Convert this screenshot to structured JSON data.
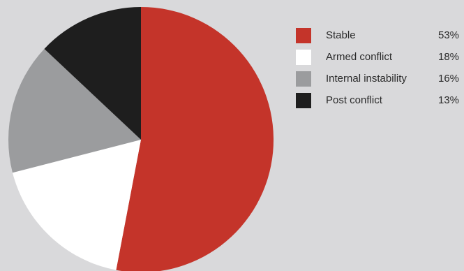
{
  "chart_data": {
    "type": "pie",
    "title": "",
    "legend_position": "right",
    "slices": [
      {
        "label": "Stable",
        "value": 53,
        "display": "53%",
        "color": "#c4342a"
      },
      {
        "label": "Armed conflict",
        "value": 18,
        "display": "18%",
        "color": "#ffffff"
      },
      {
        "label": "Internal instability",
        "value": 16,
        "display": "16%",
        "color": "#9b9c9e"
      },
      {
        "label": "Post conflict",
        "value": 13,
        "display": "13%",
        "color": "#1e1e1e"
      }
    ]
  }
}
